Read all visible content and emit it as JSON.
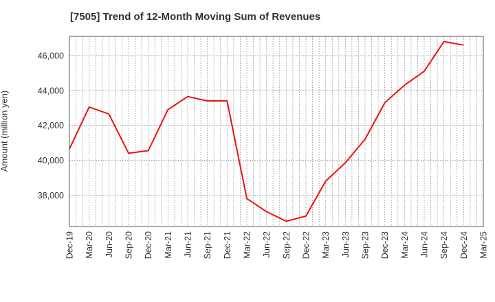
{
  "title": "[7505]  Trend of 12-Month Moving Sum of Revenues",
  "chart_data": {
    "type": "line",
    "title": "[7505]  Trend of 12-Month Moving Sum of Revenues",
    "xlabel": "",
    "ylabel": "Amount (million yen)",
    "x_ticks": [
      "Dec-19",
      "Mar-20",
      "Jun-20",
      "Sep-20",
      "Dec-20",
      "Mar-21",
      "Jun-21",
      "Sep-21",
      "Dec-21",
      "Mar-22",
      "Jun-22",
      "Sep-22",
      "Dec-22",
      "Mar-23",
      "Jun-23",
      "Sep-23",
      "Dec-23",
      "Mar-24",
      "Jun-24",
      "Sep-24",
      "Dec-24",
      "Mar-25"
    ],
    "y_ticks": [
      38000,
      40000,
      42000,
      44000,
      46000
    ],
    "y_tick_labels": [
      "38,000",
      "40,000",
      "42,000",
      "44,000",
      "46,000"
    ],
    "ylim": [
      36200,
      47100
    ],
    "grid": true,
    "series": [
      {
        "color": "#e8130f",
        "values": [
          40650,
          43050,
          42650,
          40400,
          40550,
          42900,
          43650,
          43400,
          43400,
          37800,
          37050,
          36500,
          36800,
          38800,
          39850,
          41200,
          43300,
          44300,
          45100,
          46800,
          46600
        ]
      }
    ]
  }
}
